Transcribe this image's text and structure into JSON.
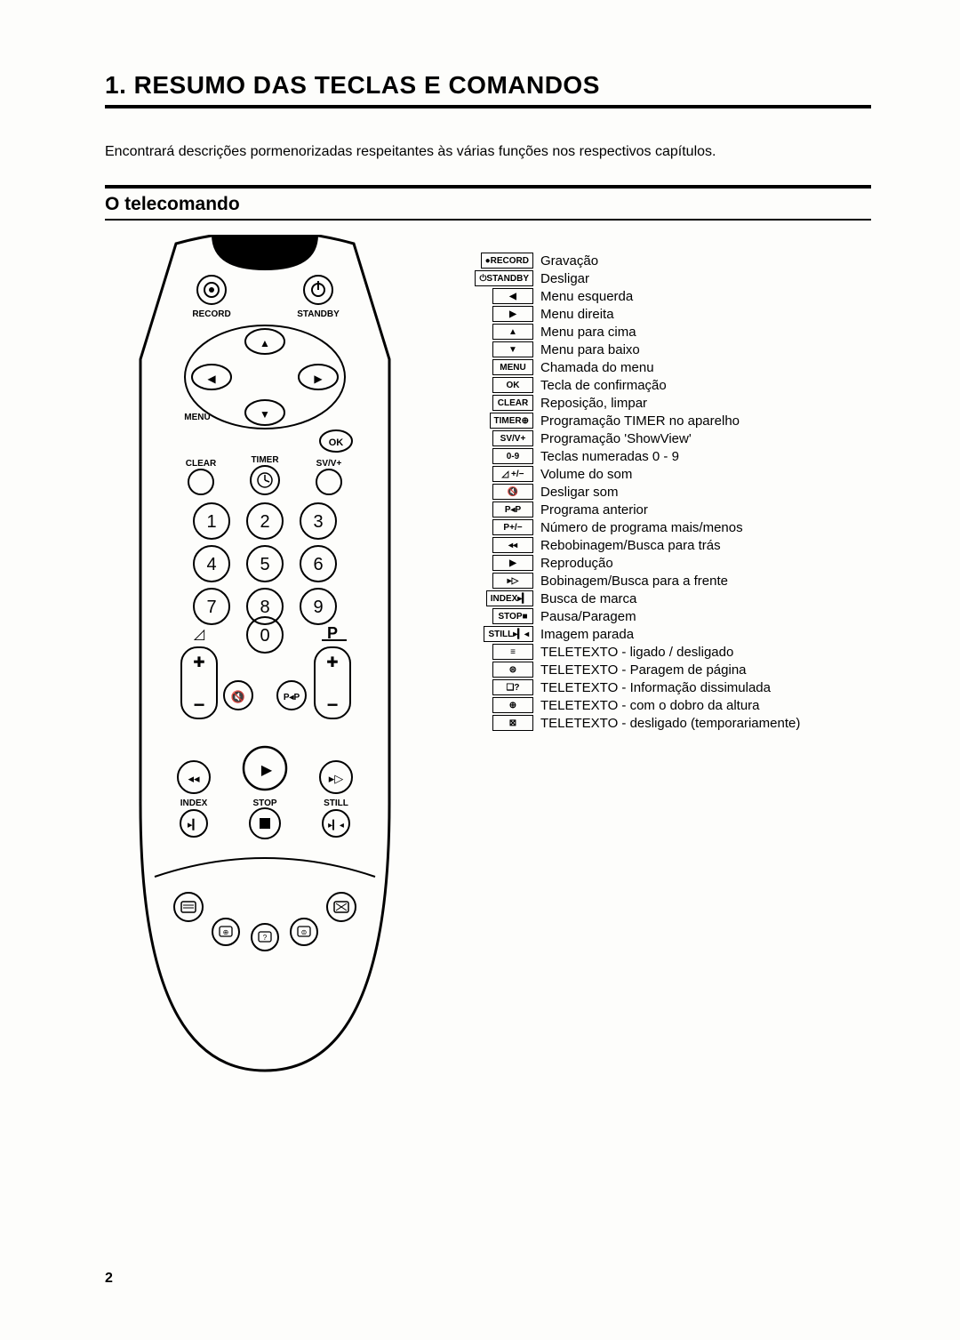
{
  "title": "1.   RESUMO DAS TECLAS E COMANDOS",
  "intro": "Encontrará descrições pormenorizadas respeitantes às várias funções nos respectivos capítulos.",
  "section_heading": "O telecomando",
  "page_number": "2",
  "colors": {
    "text": "#000000",
    "bg": "#fdfdfb",
    "rule": "#000000",
    "stroke": "#000000",
    "fill_black": "#000000"
  },
  "remote": {
    "labels": {
      "record": "RECORD",
      "standby": "STANDBY",
      "menu": "MENU",
      "ok": "OK",
      "clear": "CLEAR",
      "timer": "TIMER",
      "svv": "SV/V+",
      "index": "INDEX",
      "stop": "STOP",
      "still": "STILL",
      "p": "P",
      "vol_icon": "◿"
    },
    "digits": [
      "1",
      "2",
      "3",
      "4",
      "5",
      "6",
      "7",
      "8",
      "9",
      "0"
    ]
  },
  "legend": [
    {
      "key": "●RECORD",
      "text": "Gravação"
    },
    {
      "key": "⏻STANDBY",
      "text": "Desligar"
    },
    {
      "key": "◀",
      "text": "Menu esquerda"
    },
    {
      "key": "▶",
      "text": "Menu direita"
    },
    {
      "key": "▲",
      "text": "Menu para cima"
    },
    {
      "key": "▼",
      "text": "Menu para baixo"
    },
    {
      "key": "MENU",
      "text": "Chamada do menu"
    },
    {
      "key": "OK",
      "text": "Tecla de confirmação"
    },
    {
      "key": "CLEAR",
      "text": "Reposição, limpar"
    },
    {
      "key": "TIMER⊕",
      "text": "Programação TIMER no aparelho"
    },
    {
      "key": "SV/V+",
      "text": "Programação 'ShowView'"
    },
    {
      "key": "0-9",
      "text": "Teclas numeradas 0 - 9"
    },
    {
      "key": "◿ +/−",
      "text": "Volume do som"
    },
    {
      "key": "🔇",
      "text": "Desligar som"
    },
    {
      "key": "P◂P",
      "text": "Programa anterior"
    },
    {
      "key": "P+/−",
      "text": "Número de programa mais/menos"
    },
    {
      "key": "◂◂",
      "text": "Rebobinagem/Busca para trás"
    },
    {
      "key": "▶",
      "text": "Reprodução"
    },
    {
      "key": "▸▷",
      "text": "Bobinagem/Busca para a frente"
    },
    {
      "key": "INDEX▸▎",
      "text": "Busca de marca"
    },
    {
      "key": "STOP■",
      "text": "Pausa/Paragem"
    },
    {
      "key": "STILL▸▎◂",
      "text": "Imagem parada"
    },
    {
      "key": "≡",
      "text": "TELETEXTO - ligado / desligado"
    },
    {
      "key": "⊜",
      "text": "TELETEXTO - Paragem de página"
    },
    {
      "key": "❏?",
      "text": "TELETEXTO - Informação dissimulada"
    },
    {
      "key": "⊕",
      "text": "TELETEXTO - com o dobro da altura"
    },
    {
      "key": "⊠",
      "text": "TELETEXTO - desligado (temporariamente)"
    }
  ]
}
